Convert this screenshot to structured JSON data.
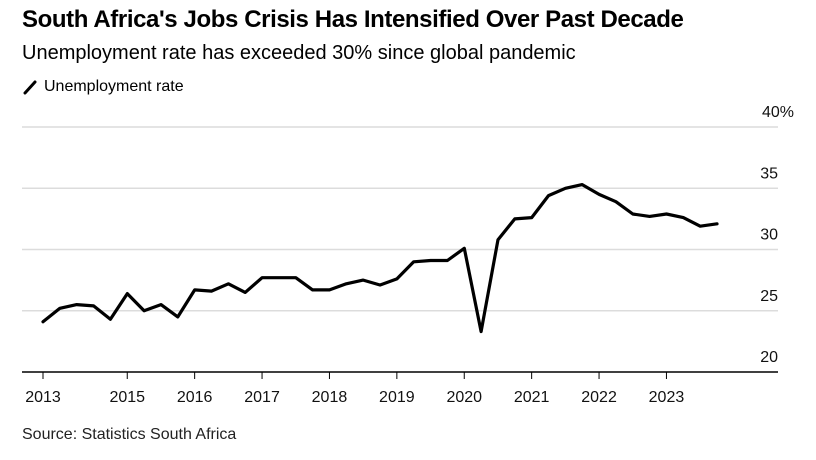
{
  "chart_data": {
    "type": "line",
    "title": "South Africa's Jobs Crisis Has Intensified Over Past Decade",
    "subtitle": "Unemployment rate has exceeded 30% since global pandemic",
    "legend": [
      {
        "name": "Unemployment rate",
        "color": "#000000"
      }
    ],
    "legend_placement": "top-left",
    "source": "Source: Statistics South Africa",
    "xlabel": "",
    "ylabel": "",
    "ylim": [
      20,
      40
    ],
    "yticks": [
      {
        "value": 40,
        "label": "40%"
      },
      {
        "value": 35,
        "label": "35"
      },
      {
        "value": 30,
        "label": "30"
      },
      {
        "value": 25,
        "label": "25"
      },
      {
        "value": 20,
        "label": "20"
      }
    ],
    "y_axis_side": "right",
    "grid": true,
    "xticks": [
      {
        "index": 0,
        "label": "2013"
      },
      {
        "index": 5,
        "label": "2015"
      },
      {
        "index": 9,
        "label": "2016"
      },
      {
        "index": 13,
        "label": "2017"
      },
      {
        "index": 17,
        "label": "2018"
      },
      {
        "index": 21,
        "label": "2019"
      },
      {
        "index": 25,
        "label": "2020"
      },
      {
        "index": 29,
        "label": "2021"
      },
      {
        "index": 33,
        "label": "2022"
      },
      {
        "index": 37,
        "label": "2023"
      }
    ],
    "x_range_points": [
      0,
      43.5
    ],
    "series": [
      {
        "name": "Unemployment rate",
        "color": "#000000",
        "values": [
          24.1,
          25.2,
          25.5,
          25.4,
          24.3,
          26.4,
          25.0,
          25.5,
          24.5,
          26.7,
          26.6,
          27.2,
          26.5,
          27.7,
          27.7,
          27.7,
          26.7,
          26.7,
          27.2,
          27.5,
          27.1,
          27.6,
          29.0,
          29.1,
          29.1,
          30.1,
          23.3,
          30.8,
          32.5,
          32.6,
          34.4,
          35.0,
          35.3,
          34.5,
          33.9,
          32.9,
          32.7,
          32.9,
          32.6,
          31.9,
          32.1
        ]
      }
    ]
  }
}
